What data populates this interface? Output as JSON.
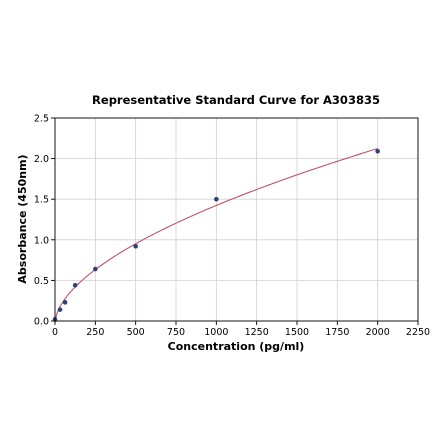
{
  "chart_data": {
    "type": "scatter",
    "title": "Representative Standard Curve for A303835",
    "xlabel": "Concentration (pg/ml)",
    "ylabel": "Absorbance (450nm)",
    "xlim": [
      0,
      2250
    ],
    "ylim": [
      0,
      2.5
    ],
    "xticks": [
      0,
      250,
      500,
      750,
      1000,
      1250,
      1500,
      1750,
      2000,
      2250
    ],
    "yticks": [
      0.0,
      0.5,
      1.0,
      1.5,
      2.0,
      2.5
    ],
    "xtick_labels": [
      "0",
      "250",
      "500",
      "750",
      "1000",
      "1250",
      "1500",
      "1750",
      "2000",
      "2250"
    ],
    "ytick_labels": [
      "0.0",
      "0.5",
      "1.0",
      "1.5",
      "2.0",
      "2.5"
    ],
    "grid": true,
    "series": [
      {
        "x": [
          0,
          31.25,
          62.5,
          125,
          250,
          500,
          1000,
          2000
        ],
        "y": [
          0.02,
          0.14,
          0.23,
          0.44,
          0.64,
          0.92,
          1.5,
          2.09
        ]
      }
    ],
    "fit_curve": true,
    "colors": {
      "curve": "#c0546a",
      "points": "#2f3f7a",
      "grid": "#d0d0d0"
    }
  }
}
